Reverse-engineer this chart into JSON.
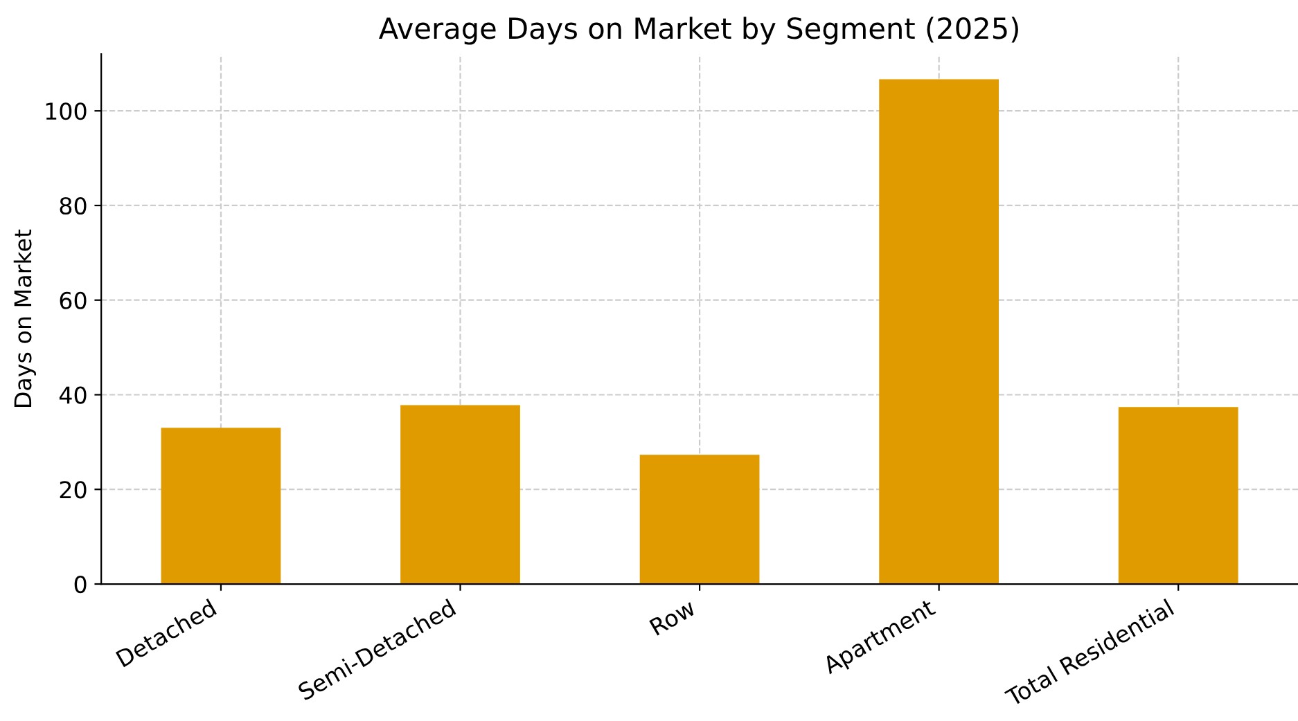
{
  "chart_data": {
    "type": "bar",
    "title": "Average Days on Market by Segment (2025)",
    "ylabel": "Days on Market",
    "categories": [
      "Detached",
      "Semi-Detached",
      "Row",
      "Apartment",
      "Total Residential"
    ],
    "values": [
      33.0,
      37.8,
      27.3,
      106.7,
      37.4
    ],
    "color": "#e09b00",
    "ylim": [
      0,
      112
    ],
    "yticks": [
      0,
      20,
      40,
      60,
      80,
      100
    ],
    "grid": true
  }
}
